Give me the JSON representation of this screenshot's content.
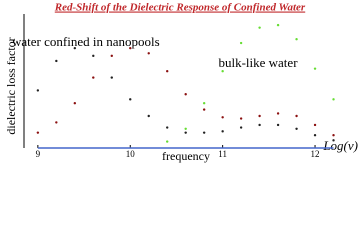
{
  "chart_data": {
    "type": "scatter",
    "title": "Red-Shift of the Dielectric Response of Confined Water",
    "xlabel": "frequency",
    "xlabel_right": "Log(ν)",
    "ylabel": "dielectric loss factor",
    "annotations": [
      "water confined in nanopools",
      "bulk-like water"
    ],
    "x": [
      9.0,
      9.2,
      9.4,
      9.6,
      9.8,
      10.0,
      10.2,
      10.4,
      10.6,
      10.8,
      11.0,
      11.2,
      11.4,
      11.6,
      11.8,
      12.0,
      12.2
    ],
    "series": [
      {
        "color": "#222222",
        "mode": "points",
        "values": [
          0.45,
          0.68,
          0.78,
          0.72,
          0.55,
          0.38,
          0.25,
          0.16,
          0.12,
          0.12,
          0.13,
          0.16,
          0.18,
          0.18,
          0.15,
          0.1,
          0.06
        ]
      },
      {
        "color": "#8b1010",
        "mode": "points",
        "values": [
          0.12,
          0.2,
          0.35,
          0.55,
          0.72,
          0.78,
          0.74,
          0.6,
          0.42,
          0.3,
          0.24,
          0.23,
          0.25,
          0.27,
          0.25,
          0.18,
          0.1
        ]
      },
      {
        "color": "#66dd33",
        "mode": "points",
        "values": [
          null,
          null,
          null,
          null,
          null,
          null,
          null,
          0.05,
          0.15,
          0.35,
          0.6,
          0.82,
          0.94,
          0.96,
          0.85,
          0.62,
          0.38
        ]
      },
      {
        "color": "#4466cc",
        "mode": "line",
        "values": [
          0,
          0,
          0,
          0,
          0,
          0,
          0,
          0,
          0,
          0,
          0,
          0,
          0,
          0,
          0,
          0,
          0
        ]
      }
    ],
    "xlim": [
      8.85,
      12.4
    ],
    "xticks": [
      9,
      10,
      11,
      12
    ],
    "ylim": [
      0,
      1
    ]
  }
}
